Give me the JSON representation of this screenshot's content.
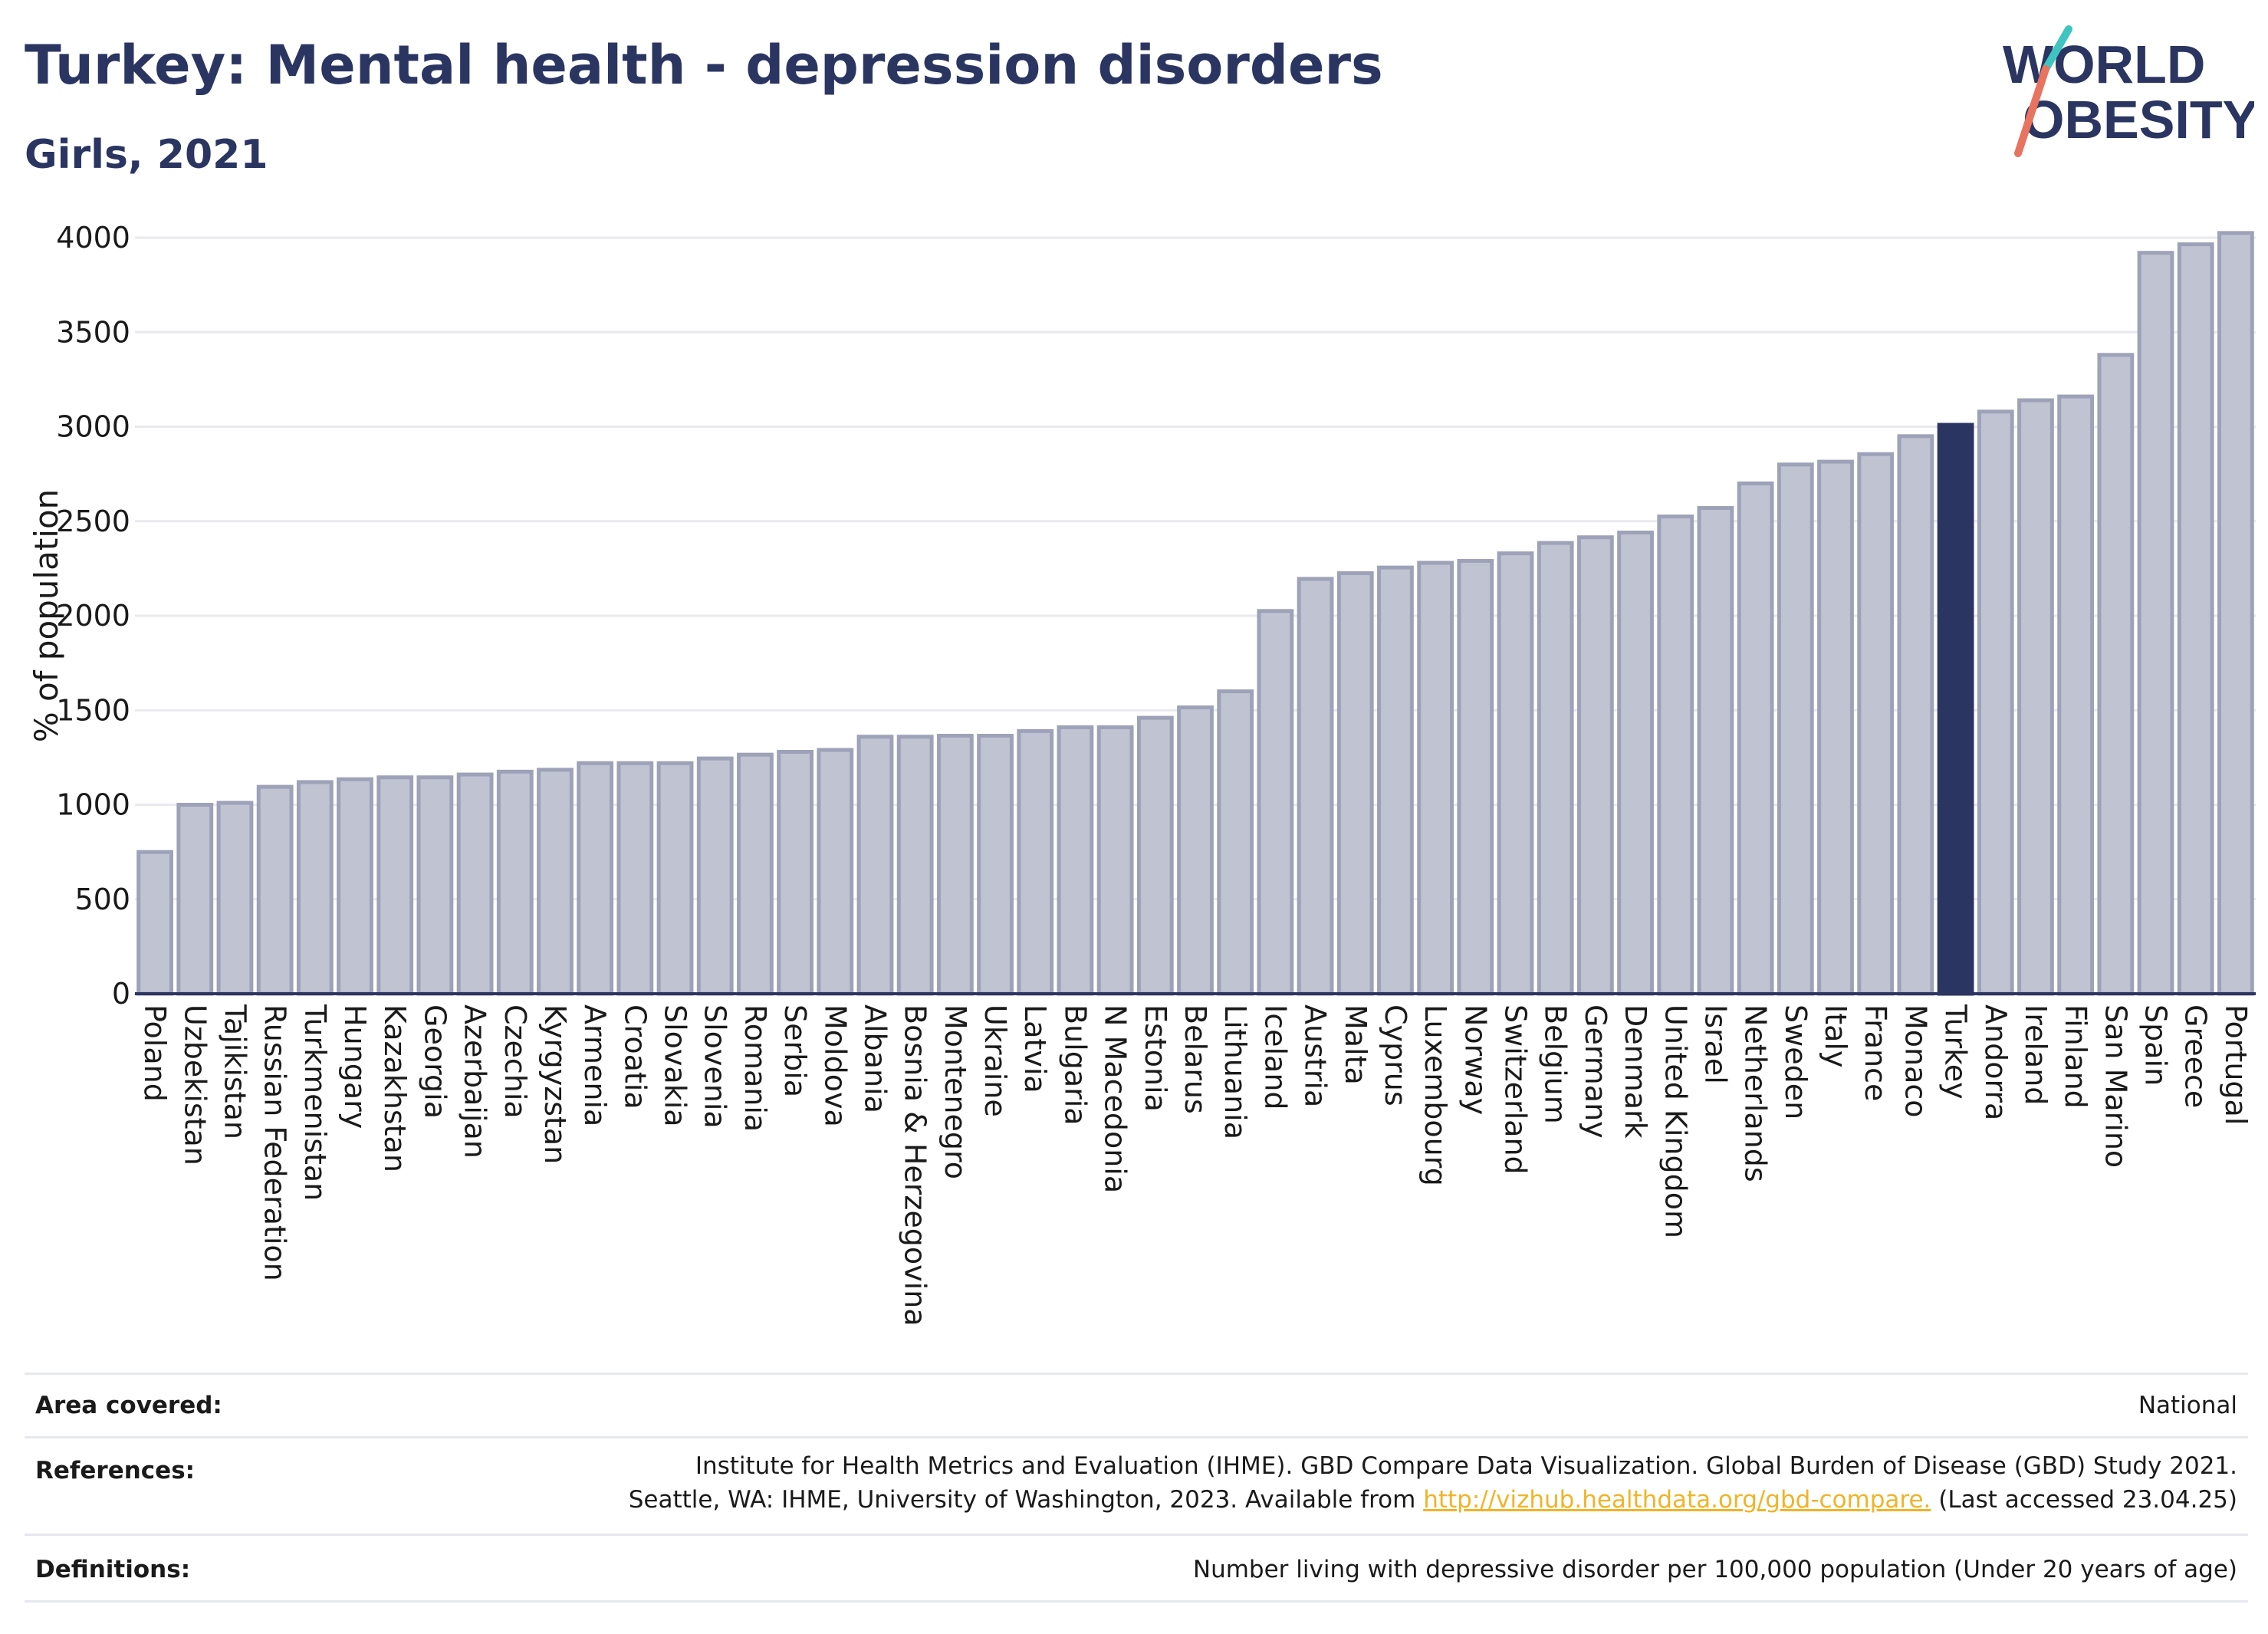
{
  "header": {
    "title": "Turkey: Mental health - depression disorders",
    "subtitle": "Girls, 2021"
  },
  "logo": {
    "line1": "WORLD",
    "line2": "OBESITY"
  },
  "colors": {
    "bar": "#bfc3d2",
    "bar_stroke": "#9da2b8",
    "highlight": "#2b3561",
    "grid": "#e9e9ee",
    "text": "#2b3561",
    "logo_teal": "#3ec4c1",
    "logo_coral": "#e8735f"
  },
  "chart_data": {
    "type": "bar",
    "title": "Turkey: Mental health - depression disorders",
    "subtitle": "Girls, 2021",
    "ylabel": "% of population",
    "xlabel": "",
    "ylim": [
      0,
      4000
    ],
    "yticks": [
      0,
      500,
      1000,
      1500,
      2000,
      2500,
      3000,
      3500,
      4000
    ],
    "grid": true,
    "highlight": "Turkey",
    "categories": [
      "Poland",
      "Uzbekistan",
      "Tajikistan",
      "Russian Federation",
      "Turkmenistan",
      "Hungary",
      "Kazakhstan",
      "Georgia",
      "Azerbaijan",
      "Czechia",
      "Kyrgyzstan",
      "Armenia",
      "Croatia",
      "Slovakia",
      "Slovenia",
      "Romania",
      "Serbia",
      "Moldova",
      "Albania",
      "Bosnia & Herzegovina",
      "Montenegro",
      "Ukraine",
      "Latvia",
      "Bulgaria",
      "N Macedonia",
      "Estonia",
      "Belarus",
      "Lithuania",
      "Iceland",
      "Austria",
      "Malta",
      "Cyprus",
      "Luxembourg",
      "Norway",
      "Switzerland",
      "Belgium",
      "Germany",
      "Denmark",
      "United Kingdom",
      "Israel",
      "Netherlands",
      "Sweden",
      "Italy",
      "France",
      "Monaco",
      "Turkey",
      "Andorra",
      "Ireland",
      "Finland",
      "San Marino",
      "Spain",
      "Greece",
      "Portugal"
    ],
    "values": [
      750,
      1000,
      1010,
      1095,
      1120,
      1135,
      1145,
      1145,
      1160,
      1175,
      1185,
      1220,
      1220,
      1220,
      1245,
      1265,
      1280,
      1290,
      1360,
      1360,
      1365,
      1365,
      1390,
      1410,
      1410,
      1460,
      1515,
      1600,
      2025,
      2195,
      2225,
      2255,
      2280,
      2290,
      2330,
      2385,
      2415,
      2440,
      2525,
      2570,
      2700,
      2800,
      2815,
      2855,
      2950,
      3010,
      3080,
      3140,
      3160,
      3380,
      3920,
      3965,
      4025
    ]
  },
  "footer": {
    "area_label": "Area covered:",
    "area_value": "National",
    "references_label": "References:",
    "references_line1": "Institute for Health Metrics and Evaluation (IHME). GBD Compare Data Visualization. Global Burden of Disease (GBD) Study 2021.",
    "references_line2_pre": "Seattle, WA: IHME, University of Washington, 2023. Available from ",
    "references_link": "http://vizhub.healthdata.org/gbd-compare.",
    "references_line2_post": " (Last accessed 23.04.25)",
    "definitions_label": "Definitions:",
    "definitions_value": "Number living with depressive disorder per 100,000 population (Under 20 years of age)"
  }
}
